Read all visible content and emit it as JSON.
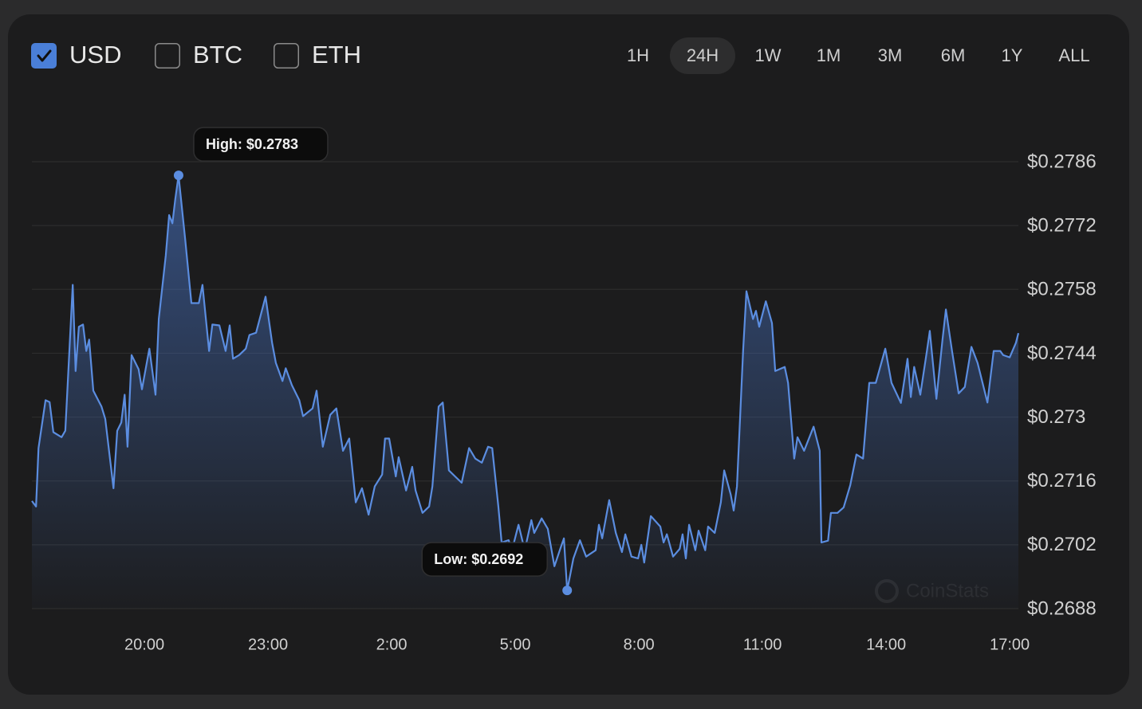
{
  "currencies": [
    {
      "label": "USD",
      "checked": true
    },
    {
      "label": "BTC",
      "checked": false
    },
    {
      "label": "ETH",
      "checked": false
    }
  ],
  "ranges": [
    {
      "label": "1H",
      "selected": false
    },
    {
      "label": "24H",
      "selected": true
    },
    {
      "label": "1W",
      "selected": false
    },
    {
      "label": "1M",
      "selected": false
    },
    {
      "label": "3M",
      "selected": false
    },
    {
      "label": "6M",
      "selected": false
    },
    {
      "label": "1Y",
      "selected": false
    },
    {
      "label": "ALL",
      "selected": false
    }
  ],
  "watermark": "CoinStats",
  "chart_data": {
    "type": "area",
    "color": "#5b8de0",
    "grid": true,
    "xlim": [
      17.27,
      41.21
    ],
    "ylim": [
      0.2688,
      0.2786
    ],
    "xticks": [
      {
        "value": 20,
        "label": "20:00"
      },
      {
        "value": 23,
        "label": "23:00"
      },
      {
        "value": 26,
        "label": "2:00"
      },
      {
        "value": 29,
        "label": "5:00"
      },
      {
        "value": 32,
        "label": "8:00"
      },
      {
        "value": 35,
        "label": "11:00"
      },
      {
        "value": 38,
        "label": "14:00"
      },
      {
        "value": 41,
        "label": "17:00"
      }
    ],
    "yticks": [
      {
        "value": 0.2786,
        "label": "$0.2786"
      },
      {
        "value": 0.2772,
        "label": "$0.2772"
      },
      {
        "value": 0.2758,
        "label": "$0.2758"
      },
      {
        "value": 0.2744,
        "label": "$0.2744"
      },
      {
        "value": 0.273,
        "label": "$0.273"
      },
      {
        "value": 0.2716,
        "label": "$0.2716"
      },
      {
        "value": 0.2702,
        "label": "$0.2702"
      },
      {
        "value": 0.2688,
        "label": "$0.2688"
      }
    ],
    "annotations": [
      {
        "text": "High: $0.2783",
        "x": 20.83,
        "y": 0.2783
      },
      {
        "text": "Low: $0.2692",
        "x": 30.26,
        "y": 0.2692
      }
    ],
    "x": [
      17.27,
      17.37,
      17.43,
      17.6,
      17.7,
      17.79,
      17.99,
      18.08,
      18.26,
      18.33,
      18.41,
      18.51,
      18.59,
      18.66,
      18.76,
      18.96,
      19.05,
      19.25,
      19.34,
      19.44,
      19.52,
      19.59,
      19.69,
      19.86,
      19.94,
      20.12,
      20.27,
      20.35,
      20.52,
      20.6,
      20.68,
      20.75,
      20.83,
      20.99,
      21.14,
      21.32,
      21.41,
      21.57,
      21.65,
      21.82,
      21.97,
      22.07,
      22.15,
      22.3,
      22.46,
      22.55,
      22.71,
      22.94,
      23.1,
      23.19,
      23.35,
      23.43,
      23.58,
      23.76,
      23.85,
      24.08,
      24.18,
      24.33,
      24.51,
      24.66,
      24.82,
      24.97,
      25.13,
      25.28,
      25.44,
      25.59,
      25.77,
      25.84,
      25.94,
      26.1,
      26.17,
      26.35,
      26.5,
      26.58,
      26.75,
      26.91,
      26.99,
      27.14,
      27.24,
      27.39,
      27.55,
      27.7,
      27.88,
      28.03,
      28.19,
      28.34,
      28.44,
      28.59,
      28.67,
      28.84,
      28.92,
      29.08,
      29.23,
      29.39,
      29.46,
      29.64,
      29.79,
      29.95,
      30.1,
      30.18,
      30.26,
      30.41,
      30.57,
      30.72,
      30.95,
      31.03,
      31.11,
      31.28,
      31.44,
      31.59,
      31.67,
      31.82,
      31.98,
      32.06,
      32.13,
      32.29,
      32.52,
      32.6,
      32.68,
      32.83,
      32.99,
      33.06,
      33.14,
      33.22,
      33.37,
      33.45,
      33.61,
      33.68,
      33.84,
      33.99,
      34.07,
      34.23,
      34.3,
      34.38,
      34.46,
      34.53,
      34.61,
      34.77,
      34.84,
      34.92,
      35.08,
      35.23,
      35.31,
      35.54,
      35.62,
      35.77,
      35.85,
      36.01,
      36.24,
      36.39,
      36.43,
      36.59,
      36.66,
      36.82,
      36.97,
      37.13,
      37.28,
      37.44,
      37.59,
      37.75,
      37.98,
      38.13,
      38.36,
      38.52,
      38.6,
      38.68,
      38.83,
      38.99,
      39.06,
      39.22,
      39.37,
      39.45,
      39.6,
      39.76,
      39.91,
      40.07,
      40.22,
      40.46,
      40.61,
      40.77,
      40.84,
      41.0,
      41.15,
      41.21
    ],
    "values": [
      0.27116,
      0.27104,
      0.27232,
      0.27337,
      0.27333,
      0.27267,
      0.27256,
      0.2727,
      0.2759,
      0.27401,
      0.27498,
      0.27503,
      0.27445,
      0.2747,
      0.27358,
      0.27323,
      0.27296,
      0.27144,
      0.2727,
      0.27288,
      0.27349,
      0.27235,
      0.27436,
      0.27405,
      0.27361,
      0.2745,
      0.27349,
      0.27515,
      0.27655,
      0.27743,
      0.27725,
      0.27778,
      0.2783,
      0.2769,
      0.2755,
      0.2755,
      0.2759,
      0.27445,
      0.27503,
      0.27501,
      0.27445,
      0.27501,
      0.27428,
      0.27436,
      0.2745,
      0.2748,
      0.27485,
      0.27564,
      0.27463,
      0.27419,
      0.27379,
      0.27407,
      0.2737,
      0.27337,
      0.27302,
      0.27319,
      0.27358,
      0.27235,
      0.27305,
      0.27319,
      0.27226,
      0.27253,
      0.27113,
      0.27144,
      0.27086,
      0.27148,
      0.27174,
      0.27253,
      0.27253,
      0.2717,
      0.27212,
      0.27139,
      0.27191,
      0.27139,
      0.2709,
      0.27104,
      0.27148,
      0.27323,
      0.27332,
      0.27183,
      0.27169,
      0.27156,
      0.27232,
      0.27209,
      0.272,
      0.27235,
      0.27232,
      0.27104,
      0.27025,
      0.2703,
      0.27008,
      0.27064,
      0.27008,
      0.27074,
      0.27046,
      0.27078,
      0.27055,
      0.26973,
      0.27013,
      0.27034,
      0.2692,
      0.2699,
      0.2703,
      0.26994,
      0.27008,
      0.27064,
      0.27034,
      0.27118,
      0.27046,
      0.27004,
      0.27043,
      0.26994,
      0.2699,
      0.2702,
      0.26981,
      0.27083,
      0.2706,
      0.27025,
      0.27043,
      0.26994,
      0.27011,
      0.27043,
      0.2699,
      0.27064,
      0.27008,
      0.27051,
      0.27008,
      0.2706,
      0.27046,
      0.27113,
      0.27183,
      0.2713,
      0.27095,
      0.27148,
      0.27305,
      0.27445,
      0.27576,
      0.27515,
      0.27533,
      0.27498,
      0.27554,
      0.27506,
      0.27401,
      0.2741,
      0.27375,
      0.27209,
      0.27256,
      0.27226,
      0.27279,
      0.27226,
      0.27025,
      0.27029,
      0.2709,
      0.2709,
      0.27102,
      0.27151,
      0.27218,
      0.27209,
      0.27375,
      0.27375,
      0.2745,
      0.27375,
      0.27331,
      0.27428,
      0.27344,
      0.2741,
      0.27349,
      0.27445,
      0.27489,
      0.2734,
      0.27471,
      0.27536,
      0.27445,
      0.27352,
      0.27366,
      0.27454,
      0.27419,
      0.27332,
      0.27445,
      0.27445,
      0.27436,
      0.27431,
      0.27463,
      0.27484
    ]
  }
}
